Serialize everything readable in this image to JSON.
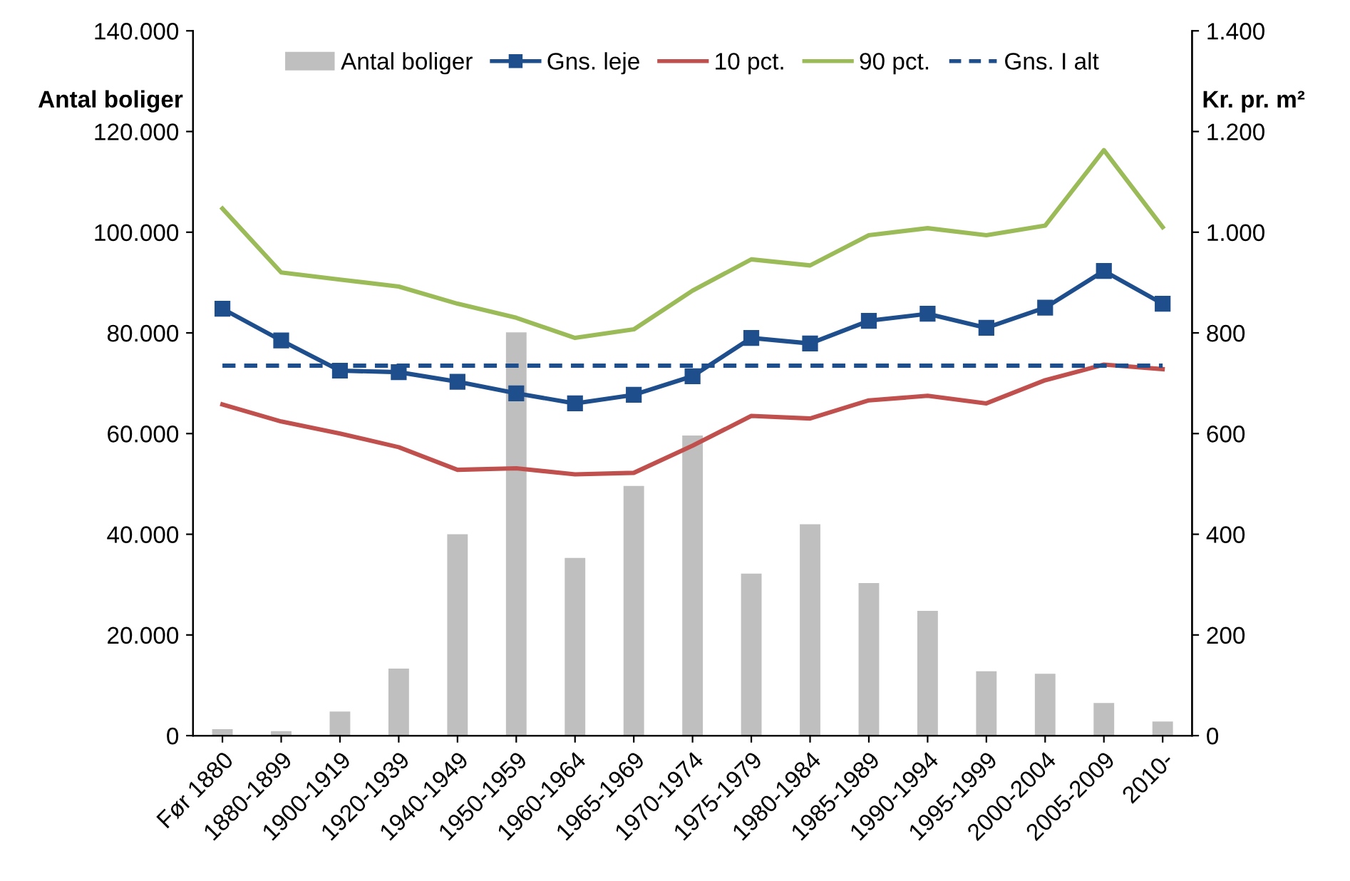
{
  "chart_data": {
    "type": "bar",
    "categories": [
      "Før 1880",
      "1880-1899",
      "1900-1919",
      "1920-1939",
      "1940-1949",
      "1950-1959",
      "1960-1964",
      "1965-1969",
      "1970-1974",
      "1975-1979",
      "1980-1984",
      "1985-1989",
      "1990-1994",
      "1995-1999",
      "2000-2004",
      "2005-2009",
      "2010-"
    ],
    "ylabel": "Antal boliger",
    "y2label": "Kr. pr. m²",
    "series": [
      {
        "name": "Antal boliger",
        "color": "#bfbfbf",
        "values": [
          1300,
          900,
          4800,
          13300,
          40000,
          80100,
          35300,
          49600,
          59600,
          32200,
          42000,
          30300,
          24800,
          12800,
          12300,
          6500,
          2800
        ]
      },
      {
        "name": "Gns. leje",
        "type": "line",
        "axis": "y2",
        "color": "#1f4e8c",
        "marker": "square",
        "values": [
          848,
          785,
          725,
          722,
          703,
          680,
          660,
          677,
          714,
          790,
          779,
          824,
          838,
          810,
          850,
          923,
          858
        ]
      },
      {
        "name": "10 pct.",
        "type": "line",
        "axis": "y2",
        "color": "#c0504d",
        "values": [
          658,
          624,
          600,
          573,
          528,
          531,
          519,
          522,
          576,
          635,
          630,
          666,
          675,
          660,
          706,
          737,
          728
        ]
      },
      {
        "name": "90 pct.",
        "type": "line",
        "axis": "y2",
        "color": "#9bbb59",
        "values": [
          1047,
          920,
          906,
          892,
          858,
          830,
          790,
          807,
          884,
          946,
          934,
          994,
          1008,
          994,
          1013,
          1163,
          1010
        ]
      },
      {
        "name": "Gns. I alt",
        "type": "line",
        "axis": "y2",
        "color": "#1f4e8c",
        "line_style": "dashed",
        "values": [
          735,
          735,
          735,
          735,
          735,
          735,
          735,
          735,
          735,
          735,
          735,
          735,
          735,
          735,
          735,
          735,
          735
        ]
      }
    ],
    "ylim": [
      0,
      140000
    ],
    "yticks": [
      0,
      {
        "value": 20000,
        "label": "20.000"
      },
      {
        "value": 40000,
        "label": "40.000"
      },
      {
        "value": 60000,
        "label": "60.000"
      },
      {
        "value": 80000,
        "label": "80.000"
      },
      {
        "value": 100000,
        "label": "100.000"
      },
      {
        "value": 120000,
        "label": "120.000"
      },
      {
        "value": 140000,
        "label": "140.000"
      }
    ],
    "y2lim": [
      0,
      1400
    ],
    "y2ticks": [
      0,
      200,
      400,
      600,
      800,
      {
        "value": 1000,
        "label": "1.000"
      },
      {
        "value": 1200,
        "label": "1.200"
      },
      {
        "value": 1400,
        "label": "1.400"
      }
    ],
    "legend": "top",
    "grid": false
  }
}
